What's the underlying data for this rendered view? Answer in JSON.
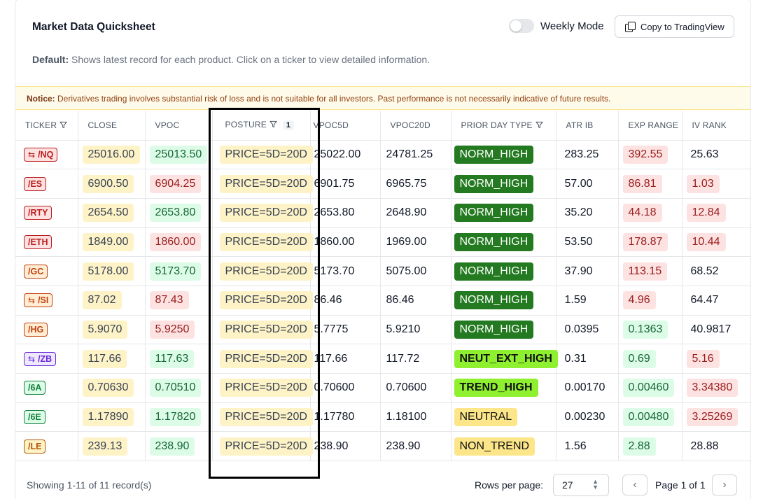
{
  "header": {
    "title": "Market Data Quicksheet",
    "weekly_mode_label": "Weekly Mode",
    "copy_button_label": "Copy to TradingView"
  },
  "default_note": {
    "label": "Default:",
    "text": "Shows latest record for each product. Click on a ticker to view detailed information."
  },
  "notice": {
    "label": "Notice:",
    "text": "Derivatives trading involves substantial risk of loss and is not suitable for all investors. Past performance is not necessarily indicative of future results."
  },
  "columns": [
    "TICKER",
    "CLOSE",
    "VPOC",
    "POSTURE",
    "VPOC5D",
    "VPOC20D",
    "PRIOR DAY TYPE",
    "ATR IB",
    "EXP RANGE",
    "IV RANK"
  ],
  "posture_filter_count": "1",
  "rows": [
    {
      "ticker": "/NQ",
      "swap": true,
      "tk": "r",
      "close": "25016.00",
      "close_c": "y",
      "vpoc": "25013.50",
      "vpoc_c": "g",
      "posture": "PRICE=5D=20D",
      "vpoc5d": "25022.00",
      "vpoc20d": "24781.25",
      "pdt": "NORM_HIGH",
      "pdt_c": "dg",
      "atr": "283.25",
      "exp": "392.55",
      "exp_c": "r",
      "iv": "25.63",
      "iv_c": "plain"
    },
    {
      "ticker": "/ES",
      "swap": false,
      "tk": "r",
      "close": "6900.50",
      "close_c": "y",
      "vpoc": "6904.25",
      "vpoc_c": "r",
      "posture": "PRICE=5D=20D",
      "vpoc5d": "6901.75",
      "vpoc20d": "6965.75",
      "pdt": "NORM_HIGH",
      "pdt_c": "dg",
      "atr": "57.00",
      "exp": "86.81",
      "exp_c": "r",
      "iv": "1.03",
      "iv_c": "r"
    },
    {
      "ticker": "/RTY",
      "swap": false,
      "tk": "r",
      "close": "2654.50",
      "close_c": "y",
      "vpoc": "2653.80",
      "vpoc_c": "g",
      "posture": "PRICE=5D=20D",
      "vpoc5d": "2653.80",
      "vpoc20d": "2648.90",
      "pdt": "NORM_HIGH",
      "pdt_c": "dg",
      "atr": "35.20",
      "exp": "44.18",
      "exp_c": "r",
      "iv": "12.84",
      "iv_c": "r"
    },
    {
      "ticker": "/ETH",
      "swap": false,
      "tk": "r",
      "close": "1849.00",
      "close_c": "y",
      "vpoc": "1860.00",
      "vpoc_c": "r",
      "posture": "PRICE=5D=20D",
      "vpoc5d": "1860.00",
      "vpoc20d": "1969.00",
      "pdt": "NORM_HIGH",
      "pdt_c": "dg",
      "atr": "53.50",
      "exp": "178.87",
      "exp_c": "r",
      "iv": "10.44",
      "iv_c": "r"
    },
    {
      "ticker": "/GC",
      "swap": false,
      "tk": "o",
      "close": "5178.00",
      "close_c": "y",
      "vpoc": "5173.70",
      "vpoc_c": "g",
      "posture": "PRICE=5D=20D",
      "vpoc5d": "5173.70",
      "vpoc20d": "5075.00",
      "pdt": "NORM_HIGH",
      "pdt_c": "dg",
      "atr": "37.90",
      "exp": "113.15",
      "exp_c": "r",
      "iv": "68.52",
      "iv_c": "plain"
    },
    {
      "ticker": "/SI",
      "swap": true,
      "tk": "o",
      "close": "87.02",
      "close_c": "y",
      "vpoc": "87.43",
      "vpoc_c": "r",
      "posture": "PRICE=5D=20D",
      "vpoc5d": "86.46",
      "vpoc20d": "86.46",
      "pdt": "NORM_HIGH",
      "pdt_c": "dg",
      "atr": "1.59",
      "exp": "4.96",
      "exp_c": "r",
      "iv": "64.47",
      "iv_c": "plain"
    },
    {
      "ticker": "/HG",
      "swap": false,
      "tk": "o",
      "close": "5.9070",
      "close_c": "y",
      "vpoc": "5.9250",
      "vpoc_c": "r",
      "posture": "PRICE=5D=20D",
      "vpoc5d": "5.7775",
      "vpoc20d": "5.9210",
      "pdt": "NORM_HIGH",
      "pdt_c": "dg",
      "atr": "0.0395",
      "exp": "0.1363",
      "exp_c": "g",
      "iv": "40.9817",
      "iv_c": "plain"
    },
    {
      "ticker": "/ZB",
      "swap": true,
      "tk": "p",
      "close": "117.66",
      "close_c": "y",
      "vpoc": "117.63",
      "vpoc_c": "g",
      "posture": "PRICE=5D=20D",
      "vpoc5d": "117.66",
      "vpoc20d": "117.72",
      "pdt": "NEUT_EXT_HIGH",
      "pdt_c": "lg",
      "atr": "0.31",
      "exp": "0.69",
      "exp_c": "g",
      "iv": "5.16",
      "iv_c": "r"
    },
    {
      "ticker": "/6A",
      "swap": false,
      "tk": "g",
      "close": "0.70630",
      "close_c": "y",
      "vpoc": "0.70510",
      "vpoc_c": "g",
      "posture": "PRICE=5D=20D",
      "vpoc5d": "0.70600",
      "vpoc20d": "0.70600",
      "pdt": "TREND_HIGH",
      "pdt_c": "lg",
      "atr": "0.00170",
      "exp": "0.00460",
      "exp_c": "g",
      "iv": "3.34380",
      "iv_c": "r"
    },
    {
      "ticker": "/6E",
      "swap": false,
      "tk": "g",
      "close": "1.17890",
      "close_c": "y",
      "vpoc": "1.17820",
      "vpoc_c": "g",
      "posture": "PRICE=5D=20D",
      "vpoc5d": "1.17780",
      "vpoc20d": "1.18100",
      "pdt": "NEUTRAL",
      "pdt_c": "yb",
      "atr": "0.00230",
      "exp": "0.00480",
      "exp_c": "g",
      "iv": "3.25269",
      "iv_c": "r"
    },
    {
      "ticker": "/LE",
      "swap": false,
      "tk": "y",
      "close": "239.13",
      "close_c": "y",
      "vpoc": "238.90",
      "vpoc_c": "g",
      "posture": "PRICE=5D=20D",
      "vpoc5d": "238.90",
      "vpoc20d": "238.90",
      "pdt": "NON_TREND",
      "pdt_c": "yb",
      "atr": "1.56",
      "exp": "2.88",
      "exp_c": "g",
      "iv": "28.88",
      "iv_c": "plain"
    }
  ],
  "footer": {
    "records_text": "Showing 1-11 of 11 record(s)",
    "rows_per_page_label": "Rows per page:",
    "rows_per_page_value": "27",
    "page_info": "Page 1 of 1"
  },
  "icons": {
    "filter": "filter-icon",
    "swap": "swap-arrows-icon",
    "copy": "copy-icon",
    "prev": "chevron-left-icon",
    "next": "chevron-right-icon"
  }
}
